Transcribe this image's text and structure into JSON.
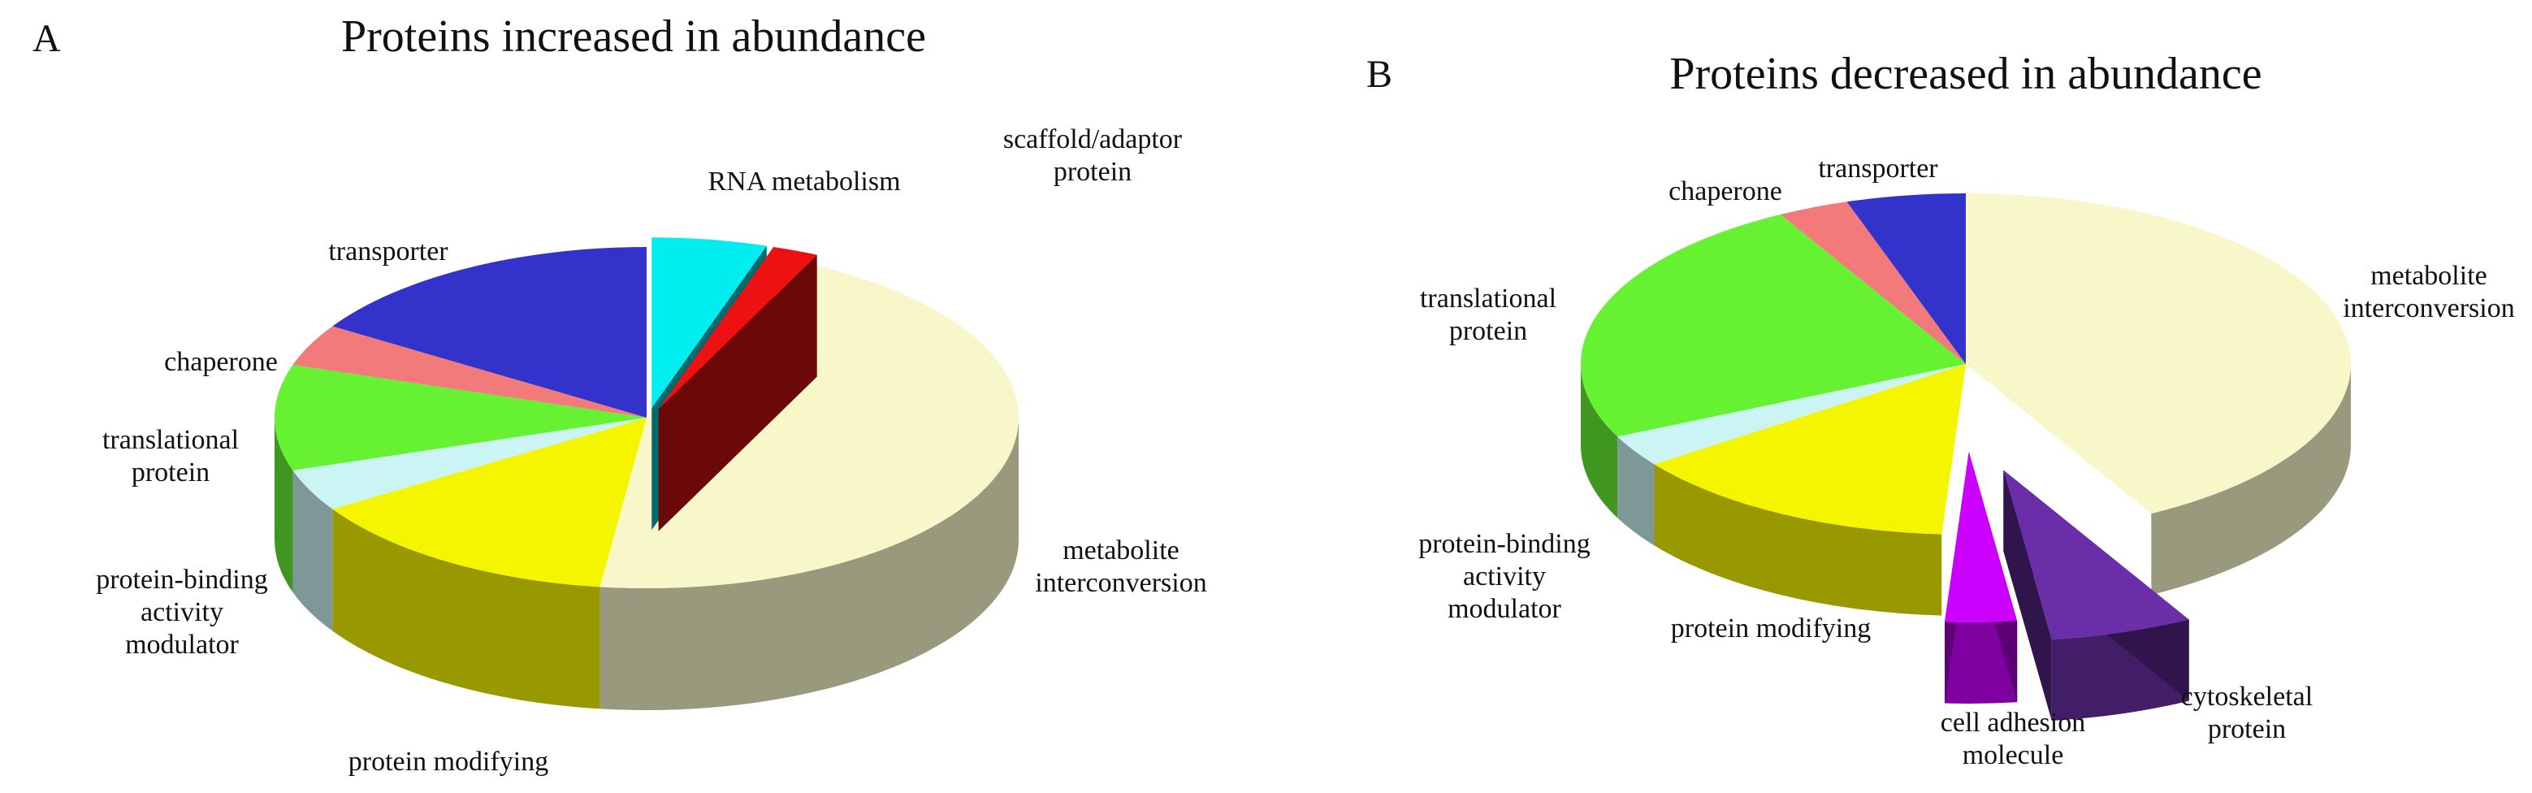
{
  "chart_data": [
    {
      "type": "pie",
      "panel": "A",
      "title": "Proteins increased in abundance",
      "categories": [
        "RNA metabolism",
        "scaffold/adaptor protein",
        "metabolite interconversion",
        "protein modifying",
        "protein-binding activity modulator",
        "translational protein",
        "chaperone",
        "transporter"
      ],
      "values": [
        5,
        2,
        45,
        14,
        4,
        10,
        4,
        16
      ],
      "colors": [
        "#00eef0",
        "#ee1111",
        "#f7f7c9",
        "#f5f500",
        "#cbf5f5",
        "#66f233",
        "#f27a7a",
        "#3333cc"
      ]
    },
    {
      "type": "pie",
      "panel": "B",
      "title": "Proteins decreased in abundance",
      "categories": [
        "metabolite interconversion",
        "cytoskeletal protein",
        "cell adhesion molecule",
        "protein modifying",
        "protein-binding activity modulator",
        "translational protein",
        "chaperone",
        "transporter"
      ],
      "values": [
        42,
        6,
        3,
        14,
        3,
        24,
        3,
        5
      ],
      "colors": [
        "#f7f7c9",
        "#6a2fa8",
        "#cc00ff",
        "#f5f500",
        "#cbf5f5",
        "#66f233",
        "#f27a7a",
        "#3333cc"
      ]
    }
  ]
}
